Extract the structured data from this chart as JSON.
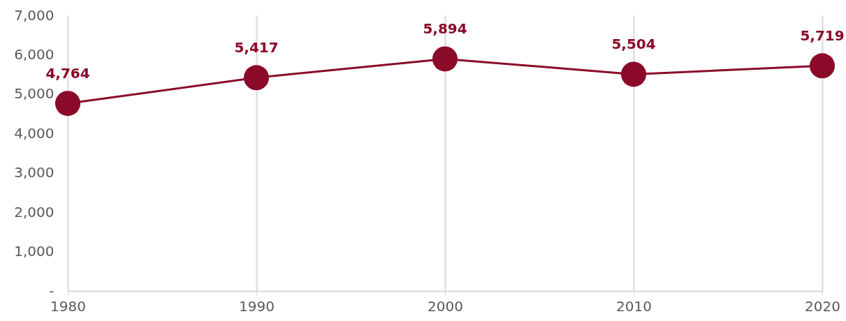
{
  "chart_data": {
    "type": "line",
    "x": [
      1980,
      1990,
      2000,
      2010,
      2020
    ],
    "series": [
      {
        "color": "#8b0a2a",
        "values": [
          4764,
          5417,
          5894,
          5504,
          5719
        ],
        "value_labels": [
          "4,764",
          "5,417",
          "5,894",
          "5,504",
          "5,719"
        ]
      }
    ],
    "xlim": [
      1980,
      2020
    ],
    "xticks": [
      1980,
      1990,
      2000,
      2010,
      2020
    ],
    "ylim": [
      0,
      7000
    ],
    "yticks": [
      {
        "value": 0,
        "label": "-"
      },
      {
        "value": 1000,
        "label": "1,000"
      },
      {
        "value": 2000,
        "label": "2,000"
      },
      {
        "value": 3000,
        "label": "3,000"
      },
      {
        "value": 4000,
        "label": "4,000"
      },
      {
        "value": 5000,
        "label": "5,000"
      },
      {
        "value": 6000,
        "label": "6,000"
      },
      {
        "value": 7000,
        "label": "7,000"
      }
    ],
    "grid": "x",
    "marker": "circle",
    "line_style": "solid"
  }
}
